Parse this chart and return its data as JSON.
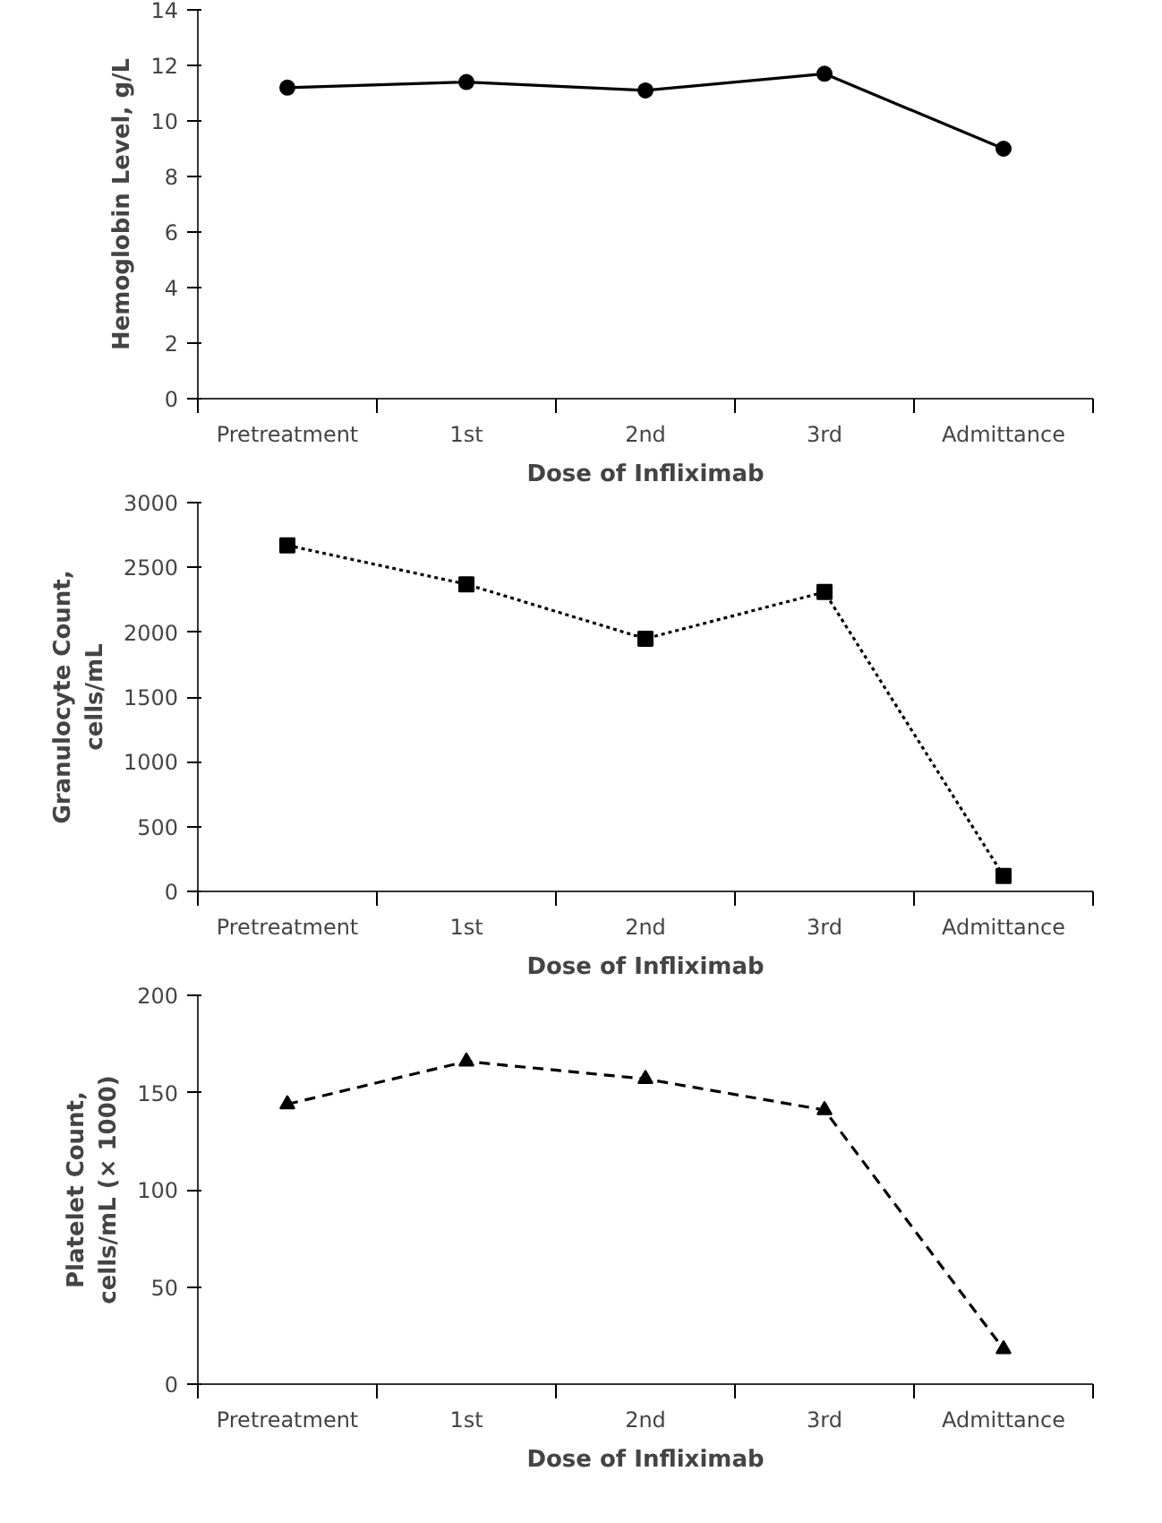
{
  "chart_data": [
    {
      "type": "line",
      "categories": [
        "Pretreatment",
        "1st",
        "2nd",
        "3rd",
        "Admittance"
      ],
      "values": [
        11.2,
        11.4,
        11.1,
        11.7,
        9.0
      ],
      "color": "#000000",
      "marker": "circle",
      "line_style": "solid",
      "ylim": [
        0,
        14
      ],
      "yticks": [
        0,
        2,
        4,
        6,
        8,
        10,
        12,
        14
      ],
      "ylabel": "Hemoglobin Level, g/L",
      "xlabel": "Dose of Infliximab",
      "grid": false,
      "legend": false
    },
    {
      "type": "line",
      "categories": [
        "Pretreatment",
        "1st",
        "2nd",
        "3rd",
        "Admittance"
      ],
      "values": [
        2670,
        2370,
        1950,
        2310,
        120
      ],
      "color": "#000000",
      "marker": "square",
      "line_style": "dotted",
      "ylim": [
        0,
        3000
      ],
      "yticks": [
        0,
        500,
        1000,
        1500,
        2000,
        2500,
        3000
      ],
      "ylabel": "Granulocyte Count,\ncells/mL",
      "xlabel": "Dose of Infliximab",
      "grid": false,
      "legend": false
    },
    {
      "type": "line",
      "categories": [
        "Pretreatment",
        "1st",
        "2nd",
        "3rd",
        "Admittance"
      ],
      "values": [
        144,
        166,
        157,
        141,
        18
      ],
      "color": "#000000",
      "marker": "triangle",
      "line_style": "dashed",
      "ylim": [
        0,
        200
      ],
      "yticks": [
        0,
        50,
        100,
        150,
        200
      ],
      "ylabel": "Platelet Count,\ncells/mL (× 1000)",
      "xlabel": "Dose of Infliximab",
      "grid": false,
      "legend": false
    }
  ]
}
